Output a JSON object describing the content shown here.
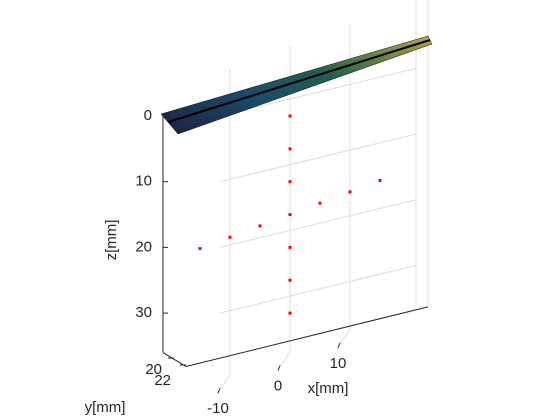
{
  "chart_data": {
    "type": "scatter3d",
    "xlabel": "x[mm]",
    "ylabel": "y[mm]",
    "zlabel": "z[mm]",
    "x": [
      0,
      0,
      0,
      0,
      0,
      0,
      0,
      -15,
      -10,
      -5,
      5,
      10,
      15
    ],
    "z": [
      0,
      5,
      10,
      15,
      20,
      25,
      30,
      15,
      15,
      15,
      15,
      15,
      15
    ],
    "color": "#ff0000",
    "xlim": [
      -21,
      21
    ],
    "xticks": [
      -10,
      0,
      10
    ],
    "ylim": [
      20,
      22
    ],
    "yticks": [
      20,
      22
    ],
    "zlim": [
      0,
      36
    ],
    "zticks": [
      0,
      10,
      20,
      30
    ],
    "zdir": "reverse",
    "grid": true
  }
}
